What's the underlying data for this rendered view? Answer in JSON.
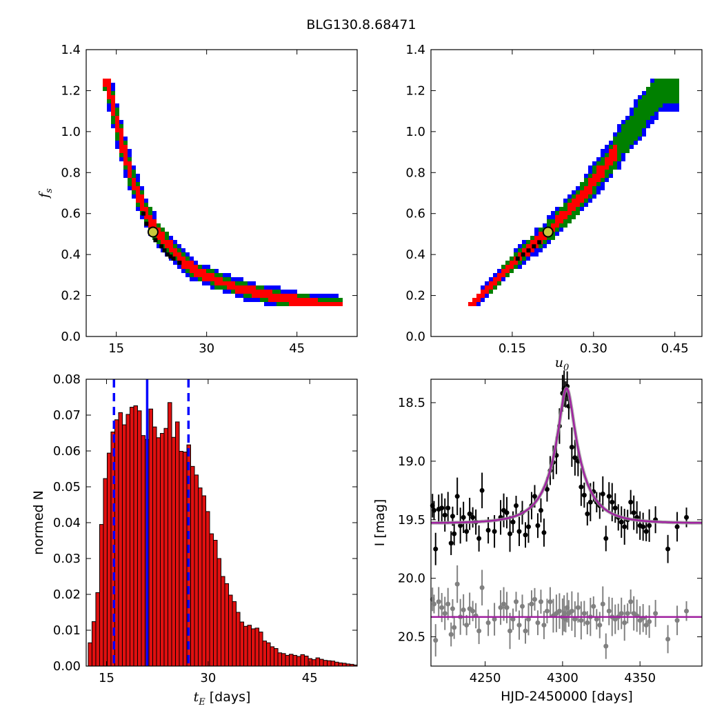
{
  "figure_title": "BLG130.8.68471",
  "colors": {
    "sigma1": "#ff0000",
    "sigma2": "#008000",
    "sigma3": "#0000ff",
    "best": "#000000",
    "marker_face": "#c8c83c",
    "hist_bar": "#e01010",
    "hist_line": "#0000ff",
    "model": "#a020a0",
    "data_main": "#000000",
    "data_resid": "#808080"
  },
  "chart_data": [
    {
      "id": "ts_fs",
      "type": "heatmap",
      "title": "",
      "xlabel": "",
      "ylabel_sym": "f",
      "ylabel_sub": "s",
      "xlim": [
        10,
        55
      ],
      "ylim": [
        0.0,
        1.4
      ],
      "xticks": [
        15,
        30,
        45
      ],
      "yticks": [
        0.0,
        0.2,
        0.4,
        0.6,
        0.8,
        1.0,
        1.2,
        1.4
      ],
      "region_centerline_x": [
        13.5,
        15,
        16.5,
        18,
        20,
        22,
        25,
        28,
        32,
        36,
        40,
        44,
        48,
        52
      ],
      "region_centerline_y": [
        1.25,
        1.05,
        0.88,
        0.74,
        0.6,
        0.5,
        0.4,
        0.32,
        0.27,
        0.23,
        0.2,
        0.18,
        0.16,
        0.15
      ],
      "best_fit": {
        "x": 21.1,
        "y": 0.51
      }
    },
    {
      "id": "u0_fs",
      "type": "heatmap",
      "title": "",
      "xlabel_sym": "u",
      "xlabel_sub": "0",
      "ylabel": "",
      "xlim": [
        0.0,
        0.5
      ],
      "ylim": [
        0.0,
        1.4
      ],
      "xticks": [
        0.15,
        0.3,
        0.45
      ],
      "yticks": [
        0.0,
        0.2,
        0.4,
        0.6,
        0.8,
        1.0,
        1.2,
        1.4
      ],
      "region_centerline_x": [
        0.075,
        0.1,
        0.13,
        0.16,
        0.19,
        0.22,
        0.25,
        0.28,
        0.31,
        0.34,
        0.37,
        0.4,
        0.43
      ],
      "region_centerline_y": [
        0.15,
        0.22,
        0.3,
        0.38,
        0.45,
        0.52,
        0.6,
        0.69,
        0.79,
        0.9,
        1.01,
        1.12,
        1.23
      ],
      "best_fit": {
        "x": 0.216,
        "y": 0.51
      }
    },
    {
      "id": "te_hist",
      "type": "bar",
      "title": "",
      "xlabel_sym": "t",
      "xlabel_sub": "E",
      "xlabel_text": " [days]",
      "ylabel": "normed N",
      "xlim": [
        12,
        52
      ],
      "ylim": [
        0.0,
        0.08
      ],
      "xticks": [
        15,
        30,
        45
      ],
      "yticks": [
        0.0,
        0.01,
        0.02,
        0.03,
        0.04,
        0.05,
        0.06,
        0.07,
        0.08
      ],
      "bin_start": 12.3,
      "bin_width": 0.56,
      "values": [
        0.0065,
        0.0124,
        0.0205,
        0.0395,
        0.0523,
        0.0594,
        0.0653,
        0.0687,
        0.0707,
        0.0673,
        0.0702,
        0.0722,
        0.0726,
        0.0712,
        0.0643,
        0.0632,
        0.0717,
        0.0667,
        0.0637,
        0.0649,
        0.0663,
        0.0735,
        0.0638,
        0.0681,
        0.0599,
        0.0597,
        0.0617,
        0.0557,
        0.0533,
        0.0497,
        0.0475,
        0.0431,
        0.0369,
        0.0351,
        0.03,
        0.025,
        0.023,
        0.0198,
        0.018,
        0.015,
        0.0123,
        0.0111,
        0.0114,
        0.0104,
        0.0106,
        0.0095,
        0.007,
        0.0065,
        0.0054,
        0.0049,
        0.0037,
        0.0035,
        0.003,
        0.0033,
        0.003,
        0.0027,
        0.0032,
        0.0028,
        0.0021,
        0.0018,
        0.0023,
        0.0019,
        0.0016,
        0.0015,
        0.0014,
        0.0011,
        0.0009,
        0.0008,
        0.0006,
        0.0005,
        0.0003,
        0.0003,
        0.0002,
        0.0002
      ],
      "vlines": [
        {
          "x": 16.1,
          "style": "dashed"
        },
        {
          "x": 21.0,
          "style": "solid"
        },
        {
          "x": 27.1,
          "style": "dashed"
        }
      ]
    },
    {
      "id": "lightcurve",
      "type": "scatter",
      "title": "",
      "xlabel": "HJD-2450000 [days]",
      "ylabel": "I [mag]",
      "xlim": [
        4215,
        4390
      ],
      "ylim": [
        18.3,
        20.75
      ],
      "y_inverted": true,
      "xticks": [
        4250,
        4300,
        4350
      ],
      "yticks": [
        18.5,
        19.0,
        19.5,
        20.0,
        20.5
      ],
      "model": {
        "t0": 4302.6,
        "tE": 21.0,
        "u0": 0.216,
        "fs": 0.51,
        "baseline_mag": 19.53,
        "residual_baseline": 20.33
      },
      "series": [
        {
          "role": "data",
          "x": [
            4216,
            4217,
            4218,
            4220,
            4222,
            4224,
            4226,
            4228,
            4229,
            4230,
            4232,
            4234,
            4236,
            4238,
            4240,
            4242,
            4244,
            4246,
            4248,
            4252,
            4256,
            4260,
            4262,
            4264,
            4266,
            4268,
            4270,
            4272,
            4274,
            4276,
            4278,
            4280,
            4282,
            4284,
            4286,
            4288,
            4290,
            4292,
            4294,
            4296,
            4298,
            4300,
            4301,
            4302,
            4303,
            4304,
            4306,
            4308,
            4310,
            4312,
            4314,
            4316,
            4318,
            4320,
            4322,
            4324,
            4326,
            4328,
            4330,
            4332,
            4334,
            4336,
            4338,
            4340,
            4342,
            4344,
            4346,
            4348,
            4350,
            4352,
            4354,
            4356,
            4360,
            4368,
            4374,
            4380
          ],
          "y": [
            19.38,
            19.42,
            19.75,
            19.41,
            19.4,
            19.46,
            19.4,
            19.7,
            19.47,
            19.62,
            19.3,
            19.55,
            19.48,
            19.6,
            19.45,
            19.48,
            19.52,
            19.66,
            19.25,
            19.59,
            19.6,
            19.48,
            19.42,
            19.44,
            19.62,
            19.52,
            19.38,
            19.6,
            19.44,
            19.63,
            19.56,
            19.38,
            19.3,
            19.55,
            19.42,
            19.61,
            19.24,
            19.08,
            19.01,
            18.95,
            18.7,
            18.42,
            18.38,
            18.43,
            18.36,
            18.53,
            18.88,
            18.97,
            19.0,
            19.22,
            19.29,
            19.45,
            19.35,
            19.26,
            19.35,
            19.38,
            19.28,
            19.66,
            19.3,
            19.35,
            19.4,
            19.48,
            19.52,
            19.56,
            19.5,
            19.35,
            19.44,
            19.48,
            19.55,
            19.56,
            19.6,
            19.55,
            19.5,
            19.75,
            19.56,
            19.48
          ]
        },
        {
          "role": "residuals",
          "x": [
            4216,
            4217,
            4218,
            4220,
            4222,
            4224,
            4226,
            4228,
            4229,
            4230,
            4232,
            4234,
            4236,
            4238,
            4240,
            4242,
            4244,
            4246,
            4248,
            4252,
            4256,
            4260,
            4262,
            4264,
            4266,
            4268,
            4270,
            4272,
            4274,
            4276,
            4278,
            4280,
            4282,
            4284,
            4286,
            4288,
            4290,
            4292,
            4294,
            4296,
            4298,
            4300,
            4301,
            4302,
            4303,
            4304,
            4306,
            4308,
            4310,
            4312,
            4314,
            4316,
            4318,
            4320,
            4322,
            4324,
            4326,
            4328,
            4330,
            4332,
            4334,
            4336,
            4338,
            4340,
            4342,
            4344,
            4346,
            4348,
            4350,
            4352,
            4354,
            4356,
            4360,
            4368,
            4374,
            4380
          ],
          "y": [
            20.18,
            20.22,
            20.53,
            20.2,
            20.25,
            20.3,
            20.22,
            20.48,
            20.26,
            20.42,
            20.05,
            20.33,
            20.27,
            20.4,
            20.26,
            20.28,
            20.32,
            20.45,
            20.08,
            20.38,
            20.35,
            20.25,
            20.22,
            20.25,
            20.45,
            20.35,
            20.2,
            20.4,
            20.24,
            20.45,
            20.35,
            20.22,
            20.18,
            20.38,
            20.2,
            20.4,
            20.28,
            20.2,
            20.32,
            20.3,
            20.28,
            20.33,
            20.3,
            20.35,
            20.25,
            20.3,
            20.28,
            20.35,
            20.25,
            20.36,
            20.3,
            20.38,
            20.33,
            20.24,
            20.35,
            20.4,
            20.22,
            20.58,
            20.28,
            20.33,
            20.35,
            20.33,
            20.3,
            20.38,
            20.3,
            20.2,
            20.3,
            20.32,
            20.36,
            20.34,
            20.4,
            20.37,
            20.3,
            20.52,
            20.36,
            20.28
          ]
        }
      ]
    }
  ]
}
